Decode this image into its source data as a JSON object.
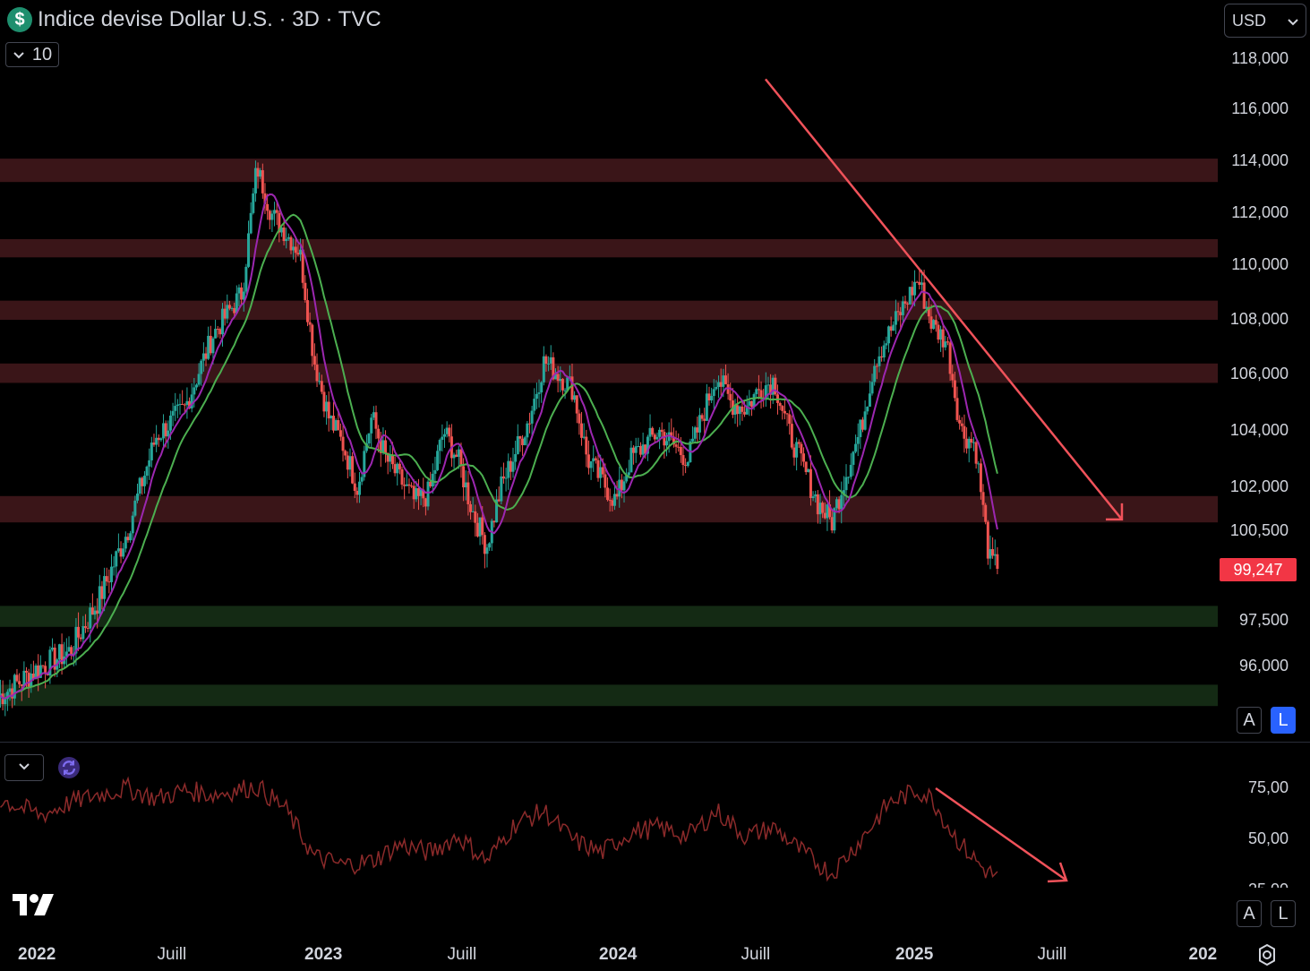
{
  "header": {
    "symbol_title": "Indice devise Dollar U.S. · 3D · TVC",
    "collapse_count": "10",
    "currency": "USD"
  },
  "price_axis": [
    "118,000",
    "116,000",
    "114,000",
    "112,000",
    "110,000",
    "108,000",
    "106,000",
    "104,000",
    "102,000",
    "100,500",
    "97,500",
    "96,000"
  ],
  "last_price": "99,247",
  "indicator_axis": [
    "75,00",
    "50,00",
    "25,00"
  ],
  "time_axis": [
    "2022",
    "Juill",
    "2023",
    "Juill",
    "2024",
    "Juill",
    "2025",
    "Juill",
    "202"
  ],
  "scale_buttons": {
    "auto": "A",
    "log": "L"
  },
  "colors": {
    "up": "#26a69a",
    "down": "#ef5350",
    "ma_fast": "#9c27b0",
    "ma_slow": "#4caf50",
    "resistance_zone": "#3a1518",
    "support_zone": "#142a14",
    "trendline": "#f0525a",
    "rsi": "#8b2a2a"
  },
  "icons": [
    "dollar-icon",
    "chevron-down-icon",
    "sync-icon",
    "tradingview-logo",
    "gear-icon"
  ],
  "chart_data": {
    "type": "candlestick",
    "ylim": [
      95000,
      118500
    ],
    "resistance_zones": [
      [
        113200,
        114100
      ],
      [
        110300,
        111000
      ],
      [
        108000,
        108700
      ],
      [
        105700,
        106400
      ],
      [
        100800,
        101700
      ]
    ],
    "support_zones": [
      [
        97300,
        98000
      ],
      [
        94700,
        95400
      ]
    ],
    "trendline": [
      [
        2024.52,
        117200
      ],
      [
        2025.76,
        100900
      ]
    ],
    "anchors": [
      [
        2021.85,
        95000
      ],
      [
        2022.0,
        96000
      ],
      [
        2022.1,
        96500
      ],
      [
        2022.2,
        98200
      ],
      [
        2022.3,
        100500
      ],
      [
        2022.4,
        103800
      ],
      [
        2022.5,
        104800
      ],
      [
        2022.6,
        107500
      ],
      [
        2022.7,
        109000
      ],
      [
        2022.75,
        113800
      ],
      [
        2022.8,
        112000
      ],
      [
        2022.9,
        110500
      ],
      [
        2022.95,
        106500
      ],
      [
        2023.0,
        104500
      ],
      [
        2023.05,
        103500
      ],
      [
        2023.1,
        102000
      ],
      [
        2023.15,
        104500
      ],
      [
        2023.2,
        103000
      ],
      [
        2023.3,
        101500
      ],
      [
        2023.35,
        101800
      ],
      [
        2023.4,
        104000
      ],
      [
        2023.45,
        103000
      ],
      [
        2023.5,
        101200
      ],
      [
        2023.55,
        100000
      ],
      [
        2023.6,
        102000
      ],
      [
        2023.7,
        104500
      ],
      [
        2023.75,
        106500
      ],
      [
        2023.8,
        106000
      ],
      [
        2023.85,
        105500
      ],
      [
        2023.9,
        103000
      ],
      [
        2024.0,
        101500
      ],
      [
        2024.05,
        103000
      ],
      [
        2024.15,
        104000
      ],
      [
        2024.2,
        103500
      ],
      [
        2024.25,
        103000
      ],
      [
        2024.3,
        104500
      ],
      [
        2024.35,
        106000
      ],
      [
        2024.4,
        105000
      ],
      [
        2024.45,
        104800
      ],
      [
        2024.5,
        105500
      ],
      [
        2024.55,
        105800
      ],
      [
        2024.6,
        104000
      ],
      [
        2024.7,
        101500
      ],
      [
        2024.75,
        100800
      ],
      [
        2024.8,
        102500
      ],
      [
        2024.85,
        104000
      ],
      [
        2024.9,
        106500
      ],
      [
        2024.95,
        107500
      ],
      [
        2025.0,
        108500
      ],
      [
        2025.05,
        109500
      ],
      [
        2025.1,
        107800
      ],
      [
        2025.15,
        107200
      ],
      [
        2025.2,
        104000
      ],
      [
        2025.25,
        103500
      ],
      [
        2025.28,
        101000
      ],
      [
        2025.3,
        99500
      ],
      [
        2025.33,
        99247
      ]
    ],
    "rsi_anchors": [
      [
        2021.85,
        70
      ],
      [
        2022.0,
        62
      ],
      [
        2022.1,
        68
      ],
      [
        2022.2,
        72
      ],
      [
        2022.3,
        75
      ],
      [
        2022.4,
        70
      ],
      [
        2022.5,
        74
      ],
      [
        2022.6,
        72
      ],
      [
        2022.75,
        76
      ],
      [
        2022.85,
        65
      ],
      [
        2022.95,
        42
      ],
      [
        2023.05,
        38
      ],
      [
        2023.15,
        40
      ],
      [
        2023.25,
        48
      ],
      [
        2023.35,
        44
      ],
      [
        2023.45,
        52
      ],
      [
        2023.55,
        40
      ],
      [
        2023.65,
        58
      ],
      [
        2023.75,
        64
      ],
      [
        2023.85,
        50
      ],
      [
        2023.95,
        44
      ],
      [
        2024.05,
        54
      ],
      [
        2024.15,
        56
      ],
      [
        2024.25,
        52
      ],
      [
        2024.35,
        64
      ],
      [
        2024.45,
        52
      ],
      [
        2024.55,
        56
      ],
      [
        2024.65,
        44
      ],
      [
        2024.75,
        34
      ],
      [
        2024.85,
        50
      ],
      [
        2024.95,
        68
      ],
      [
        2025.05,
        74
      ],
      [
        2025.1,
        70
      ],
      [
        2025.15,
        58
      ],
      [
        2025.2,
        48
      ],
      [
        2025.28,
        36
      ],
      [
        2025.33,
        32
      ]
    ]
  }
}
